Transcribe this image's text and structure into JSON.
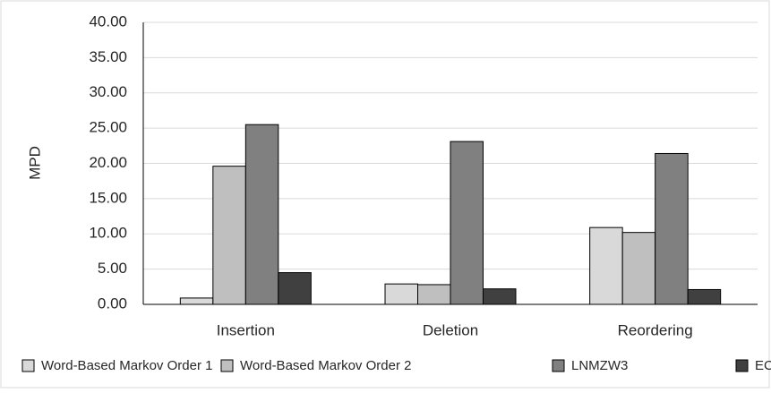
{
  "chart_data": {
    "type": "bar",
    "y_label": "MPD",
    "categories": [
      "Insertion",
      "Deletion",
      "Reordering"
    ],
    "series": [
      {
        "name": "Word-Based Markov Order 1",
        "color": "#d9d9d9",
        "values": [
          0.9,
          2.9,
          10.9
        ]
      },
      {
        "name": "Word-Based Markov Order 2",
        "color": "#bfbfbf",
        "values": [
          19.6,
          2.8,
          10.2
        ]
      },
      {
        "name": "LNMZW3",
        "color": "#808080",
        "values": [
          25.5,
          23.1,
          21.4
        ]
      },
      {
        "name": "ECL",
        "color": "#404040",
        "values": [
          4.5,
          2.2,
          2.1
        ]
      }
    ],
    "ylim": [
      0,
      40
    ],
    "yticks": [
      {
        "value": 0,
        "label": "0.00"
      },
      {
        "value": 5,
        "label": "5.00"
      },
      {
        "value": 10,
        "label": "10.00"
      },
      {
        "value": 15,
        "label": "15.00"
      },
      {
        "value": 20,
        "label": "20.00"
      },
      {
        "value": 25,
        "label": "25.00"
      },
      {
        "value": 30,
        "label": "30.00"
      },
      {
        "value": 35,
        "label": "35.00"
      },
      {
        "value": 40,
        "label": "40.00"
      }
    ],
    "grid": true,
    "legend": "bottom"
  }
}
